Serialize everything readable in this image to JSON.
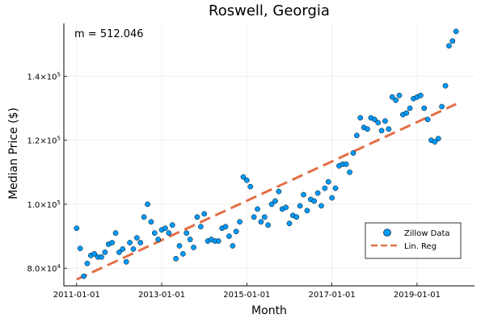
{
  "chart_data": {
    "type": "scatter",
    "title": "Roswell, Georgia",
    "xlabel": "Month",
    "ylabel": "Median Price ($)",
    "annotation": "m = 512.046",
    "grid": true,
    "legend_position": "bottom-right",
    "x_ticks": [
      {
        "label": "2011-01-01",
        "value": 2011.0
      },
      {
        "label": "2013-01-01",
        "value": 2013.0
      },
      {
        "label": "2015-01-01",
        "value": 2015.0
      },
      {
        "label": "2017-01-01",
        "value": 2017.0
      },
      {
        "label": "2019-01-01",
        "value": 2019.0
      }
    ],
    "y_ticks": [
      {
        "base": "8.0×10",
        "exp": "4",
        "value": 80000
      },
      {
        "base": "1.0×10",
        "exp": "5",
        "value": 100000
      },
      {
        "base": "1.2×10",
        "exp": "5",
        "value": 120000
      },
      {
        "base": "1.4×10",
        "exp": "5",
        "value": 140000
      }
    ],
    "xlim": [
      2010.7,
      2020.35
    ],
    "ylim": [
      74500,
      156500
    ],
    "series": [
      {
        "name": "Zillow Data",
        "kind": "scatter",
        "color": "#009AFA",
        "points": [
          [
            2011.0,
            92500
          ],
          [
            2011.083,
            86200
          ],
          [
            2011.167,
            77500
          ],
          [
            2011.25,
            81500
          ],
          [
            2011.333,
            84000
          ],
          [
            2011.417,
            84500
          ],
          [
            2011.5,
            83500
          ],
          [
            2011.583,
            83500
          ],
          [
            2011.667,
            85000
          ],
          [
            2011.75,
            87500
          ],
          [
            2011.833,
            88000
          ],
          [
            2011.917,
            91000
          ],
          [
            2012.0,
            85000
          ],
          [
            2012.083,
            86000
          ],
          [
            2012.167,
            82000
          ],
          [
            2012.25,
            88000
          ],
          [
            2012.333,
            86000
          ],
          [
            2012.417,
            89500
          ],
          [
            2012.5,
            88000
          ],
          [
            2012.583,
            96000
          ],
          [
            2012.667,
            100000
          ],
          [
            2012.75,
            94500
          ],
          [
            2012.833,
            91000
          ],
          [
            2012.917,
            89000
          ],
          [
            2013.0,
            92000
          ],
          [
            2013.083,
            92500
          ],
          [
            2013.167,
            91000
          ],
          [
            2013.25,
            93500
          ],
          [
            2013.333,
            83000
          ],
          [
            2013.417,
            87000
          ],
          [
            2013.5,
            84500
          ],
          [
            2013.583,
            91000
          ],
          [
            2013.667,
            89000
          ],
          [
            2013.75,
            86500
          ],
          [
            2013.833,
            96000
          ],
          [
            2013.917,
            93000
          ],
          [
            2014.0,
            97000
          ],
          [
            2014.083,
            88500
          ],
          [
            2014.167,
            89000
          ],
          [
            2014.25,
            88500
          ],
          [
            2014.333,
            88500
          ],
          [
            2014.417,
            92500
          ],
          [
            2014.5,
            93000
          ],
          [
            2014.583,
            90000
          ],
          [
            2014.667,
            87000
          ],
          [
            2014.75,
            91500
          ],
          [
            2014.833,
            94500
          ],
          [
            2014.917,
            108500
          ],
          [
            2015.0,
            107500
          ],
          [
            2015.083,
            105500
          ],
          [
            2015.167,
            96000
          ],
          [
            2015.25,
            98500
          ],
          [
            2015.333,
            94500
          ],
          [
            2015.417,
            96000
          ],
          [
            2015.5,
            93500
          ],
          [
            2015.583,
            100000
          ],
          [
            2015.667,
            101000
          ],
          [
            2015.75,
            104000
          ],
          [
            2015.833,
            98500
          ],
          [
            2015.917,
            99000
          ],
          [
            2016.0,
            94000
          ],
          [
            2016.083,
            96500
          ],
          [
            2016.167,
            96000
          ],
          [
            2016.25,
            99500
          ],
          [
            2016.333,
            103000
          ],
          [
            2016.417,
            98000
          ],
          [
            2016.5,
            101500
          ],
          [
            2016.583,
            101000
          ],
          [
            2016.667,
            103500
          ],
          [
            2016.75,
            99500
          ],
          [
            2016.833,
            105000
          ],
          [
            2016.917,
            107000
          ],
          [
            2017.0,
            102000
          ],
          [
            2017.083,
            105000
          ],
          [
            2017.167,
            112000
          ],
          [
            2017.25,
            112500
          ],
          [
            2017.333,
            112500
          ],
          [
            2017.417,
            110000
          ],
          [
            2017.5,
            116000
          ],
          [
            2017.583,
            121500
          ],
          [
            2017.667,
            127000
          ],
          [
            2017.75,
            124000
          ],
          [
            2017.833,
            123500
          ],
          [
            2017.917,
            127000
          ],
          [
            2018.0,
            126500
          ],
          [
            2018.083,
            125500
          ],
          [
            2018.167,
            123000
          ],
          [
            2018.25,
            126000
          ],
          [
            2018.333,
            123500
          ],
          [
            2018.417,
            133500
          ],
          [
            2018.5,
            132500
          ],
          [
            2018.583,
            134000
          ],
          [
            2018.667,
            128000
          ],
          [
            2018.75,
            128500
          ],
          [
            2018.833,
            130000
          ],
          [
            2018.917,
            133000
          ],
          [
            2019.0,
            133500
          ],
          [
            2019.083,
            134000
          ],
          [
            2019.167,
            130000
          ],
          [
            2019.25,
            126500
          ],
          [
            2019.333,
            120000
          ],
          [
            2019.417,
            119500
          ],
          [
            2019.5,
            120500
          ],
          [
            2019.583,
            130500
          ],
          [
            2019.667,
            137000
          ],
          [
            2019.75,
            149500
          ],
          [
            2019.833,
            151000
          ],
          [
            2019.917,
            154000
          ]
        ]
      },
      {
        "name": "Lin. Reg",
        "kind": "line",
        "color": "#E26F46",
        "dash": true,
        "points": [
          [
            2011.0,
            76500
          ],
          [
            2019.917,
            131300
          ]
        ]
      }
    ]
  }
}
